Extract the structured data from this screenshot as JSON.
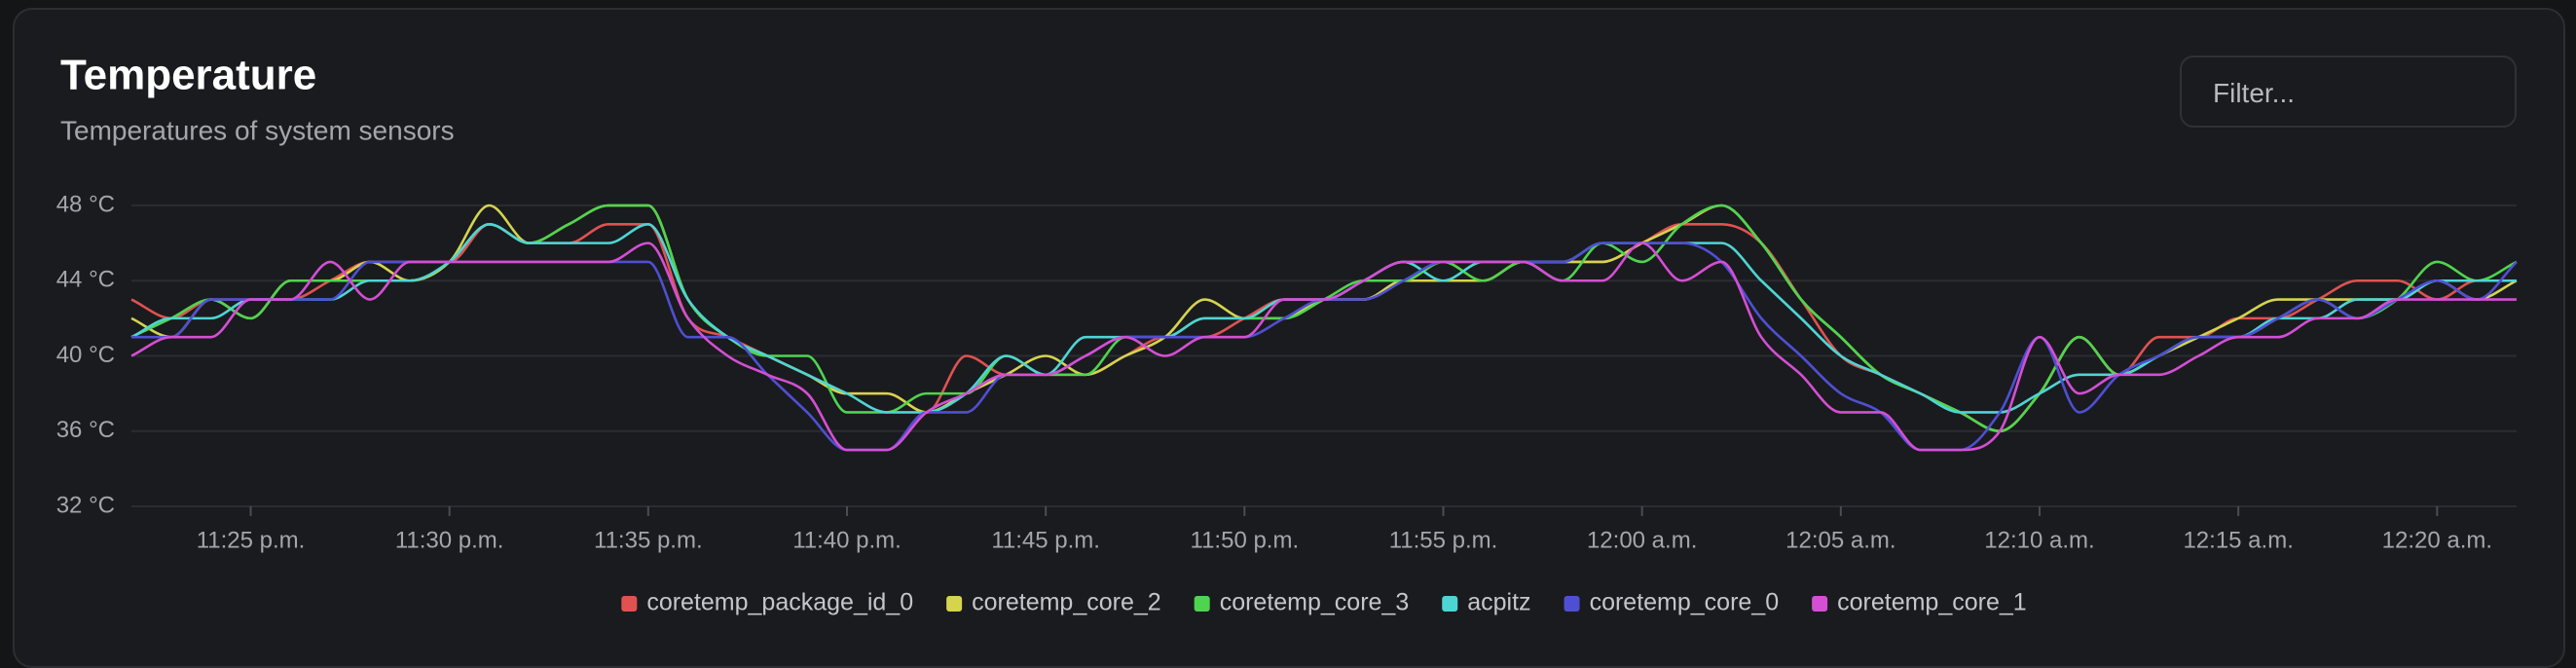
{
  "filter": {
    "placeholder": "Filter..."
  },
  "chart_data": {
    "type": "line",
    "title": "Temperature",
    "subtitle": "Temperatures of system sensors",
    "x": [
      "11:22 p.m.",
      "11:23 p.m.",
      "11:24 p.m.",
      "11:25 p.m.",
      "11:26 p.m.",
      "11:27 p.m.",
      "11:28 p.m.",
      "11:29 p.m.",
      "11:30 p.m.",
      "11:31 p.m.",
      "11:32 p.m.",
      "11:33 p.m.",
      "11:34 p.m.",
      "11:35 p.m.",
      "11:36 p.m.",
      "11:37 p.m.",
      "11:38 p.m.",
      "11:39 p.m.",
      "11:40 p.m.",
      "11:41 p.m.",
      "11:42 p.m.",
      "11:43 p.m.",
      "11:44 p.m.",
      "11:45 p.m.",
      "11:46 p.m.",
      "11:47 p.m.",
      "11:48 p.m.",
      "11:49 p.m.",
      "11:50 p.m.",
      "11:51 p.m.",
      "11:52 p.m.",
      "11:53 p.m.",
      "11:54 p.m.",
      "11:55 p.m.",
      "11:56 p.m.",
      "11:57 p.m.",
      "11:58 p.m.",
      "11:59 p.m.",
      "12:00 a.m.",
      "12:01 a.m.",
      "12:02 a.m.",
      "12:03 a.m.",
      "12:04 a.m.",
      "12:05 a.m.",
      "12:06 a.m.",
      "12:07 a.m.",
      "12:08 a.m.",
      "12:09 a.m.",
      "12:10 a.m.",
      "12:11 a.m.",
      "12:12 a.m.",
      "12:13 a.m.",
      "12:14 a.m.",
      "12:15 a.m.",
      "12:16 a.m.",
      "12:17 a.m.",
      "12:18 a.m.",
      "12:19 a.m.",
      "12:20 a.m.",
      "12:21 a.m.",
      "12:22 a.m."
    ],
    "xticks": [
      "11:25 p.m.",
      "11:30 p.m.",
      "11:35 p.m.",
      "11:40 p.m.",
      "11:45 p.m.",
      "11:50 p.m.",
      "11:55 p.m.",
      "12:00 a.m.",
      "12:05 a.m.",
      "12:10 a.m.",
      "12:15 a.m.",
      "12:20 a.m."
    ],
    "ylim": [
      32,
      48
    ],
    "yticks": [
      {
        "value": 32,
        "label": "32 °C"
      },
      {
        "value": 36,
        "label": "36 °C"
      },
      {
        "value": 40,
        "label": "40 °C"
      },
      {
        "value": 44,
        "label": "44 °C"
      },
      {
        "value": 48,
        "label": "48 °C"
      }
    ],
    "grid": true,
    "legend": "bottom",
    "series": [
      {
        "name": "coretemp_package_id_0",
        "color": "#e05252",
        "values": [
          43,
          42,
          43,
          43,
          43,
          44,
          45,
          45,
          45,
          47,
          46,
          46,
          47,
          47,
          42,
          41,
          40,
          39,
          38,
          38,
          37,
          40,
          39,
          39,
          39,
          40,
          41,
          41,
          42,
          43,
          43,
          43,
          44,
          44,
          44,
          45,
          45,
          45,
          46,
          47,
          47,
          46,
          43,
          40,
          39,
          38,
          37,
          36,
          38,
          41,
          39,
          41,
          41,
          42,
          42,
          43,
          44,
          44,
          43,
          44,
          44
        ]
      },
      {
        "name": "coretemp_core_2",
        "color": "#d4d44f",
        "values": [
          42,
          41,
          43,
          42,
          44,
          44,
          45,
          44,
          45,
          48,
          46,
          47,
          48,
          48,
          43,
          41,
          40,
          39,
          38,
          38,
          37,
          38,
          39,
          40,
          39,
          40,
          41,
          43,
          42,
          42,
          43,
          43,
          44,
          44,
          44,
          45,
          45,
          45,
          46,
          47,
          48,
          46,
          43,
          41,
          39,
          38,
          37,
          36,
          38,
          41,
          39,
          40,
          41,
          42,
          43,
          43,
          43,
          43,
          44,
          43,
          44
        ]
      },
      {
        "name": "coretemp_core_3",
        "color": "#4fd44f",
        "values": [
          41,
          42,
          43,
          42,
          44,
          44,
          44,
          44,
          45,
          47,
          46,
          47,
          48,
          48,
          43,
          41,
          40,
          40,
          37,
          37,
          38,
          38,
          40,
          39,
          39,
          41,
          41,
          42,
          42,
          42,
          43,
          44,
          44,
          45,
          44,
          45,
          44,
          46,
          45,
          47,
          48,
          46,
          43,
          41,
          39,
          38,
          37,
          36,
          38,
          41,
          39,
          40,
          41,
          41,
          42,
          43,
          42,
          43,
          45,
          44,
          45
        ]
      },
      {
        "name": "acpitz",
        "color": "#4fd4d4",
        "values": [
          41,
          42,
          42,
          43,
          43,
          43,
          44,
          44,
          45,
          47,
          46,
          46,
          46,
          47,
          43,
          41,
          40,
          39,
          38,
          37,
          37,
          38,
          40,
          39,
          41,
          41,
          41,
          42,
          42,
          43,
          43,
          44,
          45,
          44,
          45,
          45,
          45,
          46,
          46,
          46,
          46,
          44,
          42,
          40,
          39,
          38,
          37,
          37,
          38,
          39,
          39,
          40,
          41,
          41,
          42,
          42,
          43,
          43,
          44,
          44,
          44
        ]
      },
      {
        "name": "coretemp_core_0",
        "color": "#4f4fd4",
        "values": [
          41,
          41,
          43,
          43,
          43,
          43,
          45,
          45,
          45,
          45,
          45,
          45,
          45,
          45,
          41,
          41,
          39,
          37,
          35,
          35,
          37,
          37,
          39,
          39,
          40,
          41,
          41,
          41,
          41,
          42,
          43,
          43,
          44,
          45,
          45,
          45,
          45,
          46,
          46,
          46,
          45,
          42,
          40,
          38,
          37,
          35,
          35,
          37,
          41,
          37,
          39,
          40,
          41,
          41,
          42,
          43,
          42,
          43,
          44,
          43,
          45
        ]
      },
      {
        "name": "coretemp_core_1",
        "color": "#d44fd4",
        "values": [
          40,
          41,
          41,
          43,
          43,
          45,
          43,
          45,
          45,
          45,
          45,
          45,
          45,
          46,
          42,
          40,
          39,
          38,
          35,
          35,
          37,
          38,
          39,
          39,
          40,
          41,
          40,
          41,
          41,
          43,
          43,
          44,
          45,
          45,
          45,
          45,
          44,
          44,
          46,
          44,
          45,
          41,
          39,
          37,
          37,
          35,
          35,
          36,
          41,
          38,
          39,
          39,
          40,
          41,
          41,
          42,
          42,
          43,
          43,
          43,
          43
        ]
      }
    ]
  }
}
